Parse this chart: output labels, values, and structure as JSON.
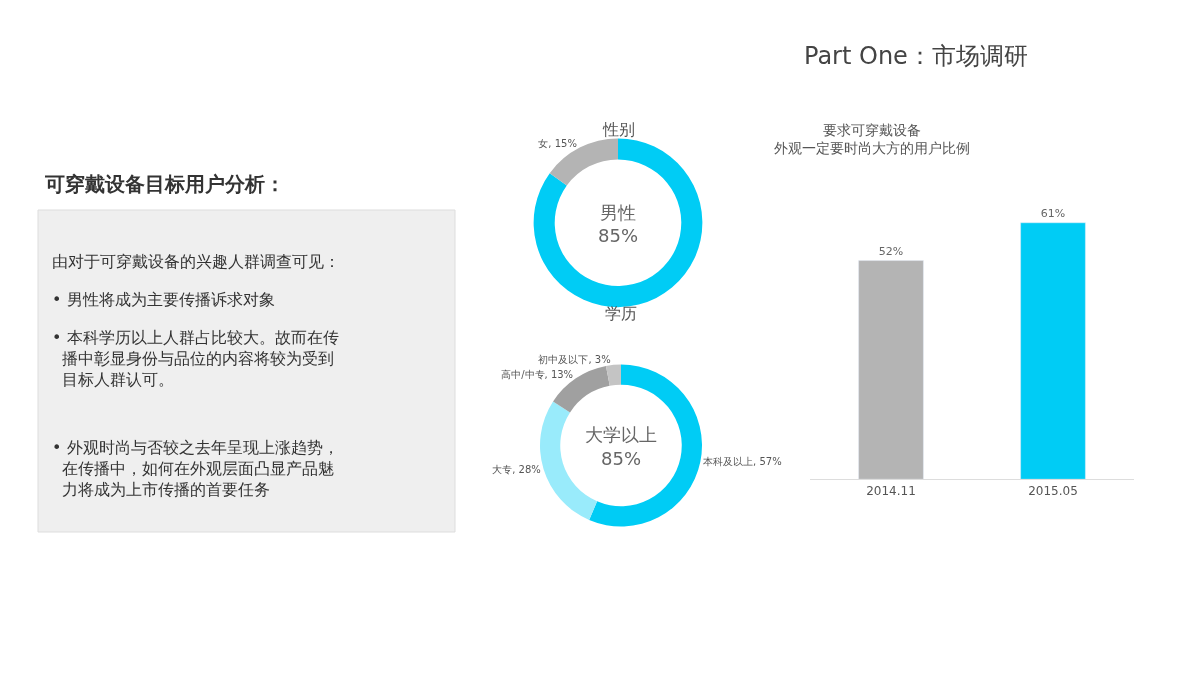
{
  "chart_data": [
    {
      "type": "other",
      "title": "Part One：市场调研",
      "subtitle": "可穿戴设备目标用户分析：",
      "annotations": [
        "由对于可穿戴设备的兴趣人群调查可见：",
        "• 男性将成为主要传播诉求对象",
        "• 本科学历以上人群占比较大。故而在传播中彰显身份与品位的内容将较为受到目标人群认可。",
        "• 外观时尚与否较之去年呈现上涨趋势，在传播中，如何在外观层面凸显产品魅力将成为上市传播的首要任务"
      ]
    },
    {
      "type": "donut",
      "title": "性别",
      "categories": [
        "男性",
        "女"
      ],
      "values": [
        85,
        15
      ],
      "colors": [
        "#00ccf5",
        "#b4b4b4"
      ],
      "value_labels": [
        "85%",
        "15%"
      ]
    },
    {
      "type": "donut",
      "title": "学历",
      "categories": [
        "本科及以上",
        "大专",
        "高中/中专",
        "初中及以下"
      ],
      "values": [
        57,
        28,
        13,
        3
      ],
      "colors": [
        "#00ccf5",
        "#99ebfb",
        "#a0a0a0",
        "#c4c4c4"
      ],
      "value_labels": [
        "57%",
        "28%",
        "13%",
        "3%"
      ],
      "annotations": [
        "大学以上\n85%"
      ]
    },
    {
      "type": "bar",
      "title": "要求可穿戴设备外观一定要时尚大方的用户比例",
      "categories": [
        "2014.11",
        "2015.05"
      ],
      "values": [
        52,
        61
      ],
      "colors": [
        "#b4b4b4",
        "#00ccf5"
      ],
      "value_labels": [
        "52%",
        "61%"
      ]
    }
  ]
}
